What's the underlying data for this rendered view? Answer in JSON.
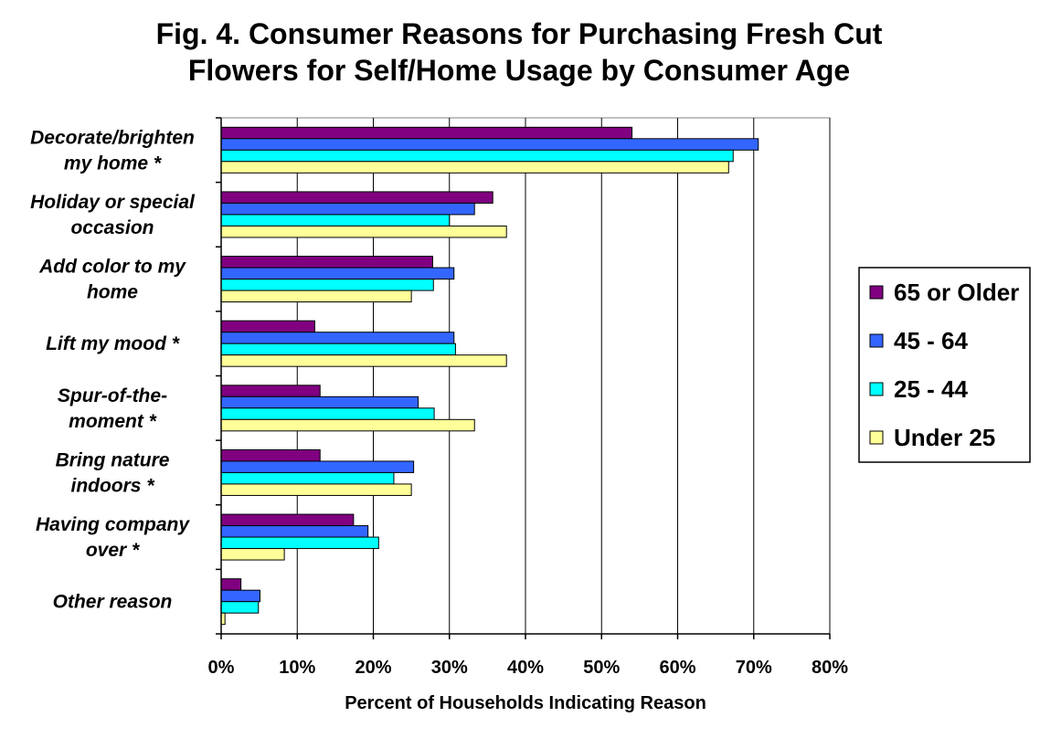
{
  "chart_data": {
    "type": "bar",
    "orientation": "horizontal",
    "title_lines": [
      "Fig. 4.  Consumer Reasons for Purchasing Fresh Cut",
      "Flowers for Self/Home Usage by Consumer Age"
    ],
    "xlabel": "Percent of Households Indicating Reason",
    "ylabel": "",
    "xlim": [
      0,
      80
    ],
    "x_ticks": [
      "0%",
      "10%",
      "20%",
      "30%",
      "40%",
      "50%",
      "60%",
      "70%",
      "80%"
    ],
    "grid": "vertical",
    "legend_position": "right",
    "categories": [
      [
        "Decorate/brighten",
        "my home *"
      ],
      [
        "Holiday or special",
        "occasion"
      ],
      [
        "Add color to my",
        "home"
      ],
      [
        "Lift my mood *"
      ],
      [
        "Spur-of-the-",
        "moment *"
      ],
      [
        "Bring nature",
        "indoors *"
      ],
      [
        "Having company",
        "over *"
      ],
      [
        "Other reason"
      ]
    ],
    "series": [
      {
        "name": "65 or Older",
        "color": "#800080",
        "values": [
          54.0,
          35.7,
          27.8,
          12.3,
          13.0,
          13.0,
          17.4,
          2.6
        ]
      },
      {
        "name": "45 - 64",
        "color": "#3366FF",
        "values": [
          70.6,
          33.3,
          30.6,
          30.6,
          25.9,
          25.3,
          19.3,
          5.1
        ]
      },
      {
        "name": "25 - 44",
        "color": "#00FFFF",
        "values": [
          67.3,
          30.0,
          27.9,
          30.8,
          28.0,
          22.7,
          20.7,
          4.9
        ]
      },
      {
        "name": "Under 25",
        "color": "#FFFF99",
        "values": [
          66.7,
          37.5,
          25.0,
          37.5,
          33.3,
          25.0,
          8.3,
          0.5
        ]
      }
    ]
  }
}
